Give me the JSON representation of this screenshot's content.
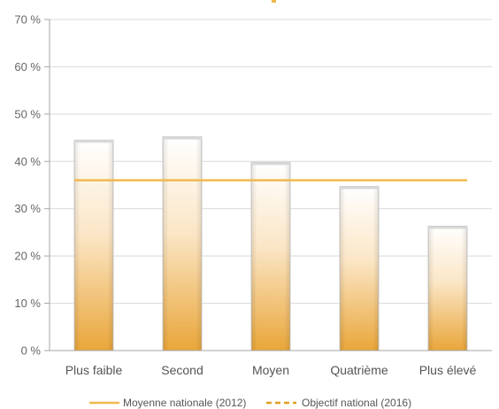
{
  "chart_data": {
    "type": "bar",
    "categories": [
      "Plus faible",
      "Second",
      "Moyen",
      "Quatrième",
      "Plus élevé"
    ],
    "series": [
      {
        "values": [
          44.5,
          45.2,
          39.8,
          34.7,
          26.3
        ]
      }
    ],
    "reference_lines": [
      {
        "name": "Moyenne nationale (2012)",
        "value": 36.0,
        "style": "solid"
      },
      {
        "name": "Objectif national (2016)",
        "value": null,
        "style": "dashed"
      }
    ],
    "y_ticks": [
      "0 %",
      "10 %",
      "20 %",
      "30 %",
      "40 %",
      "50 %",
      "60 %",
      "70 %"
    ],
    "ylim": [
      0,
      70
    ],
    "grid": true,
    "legend_position": "bottom",
    "colors": {
      "bar_top": "#ffffff",
      "bar_bottom": "#e9a63a",
      "bar_edge": "#c9c9c9",
      "national_average": "#f0b94e",
      "national_target": "#e0a020",
      "grid": "#d9d9d9",
      "axis": "#a6a6a6"
    }
  },
  "legend": {
    "national_average": "Moyenne nationale (2012)",
    "national_target": "Objectif national (2016)"
  }
}
